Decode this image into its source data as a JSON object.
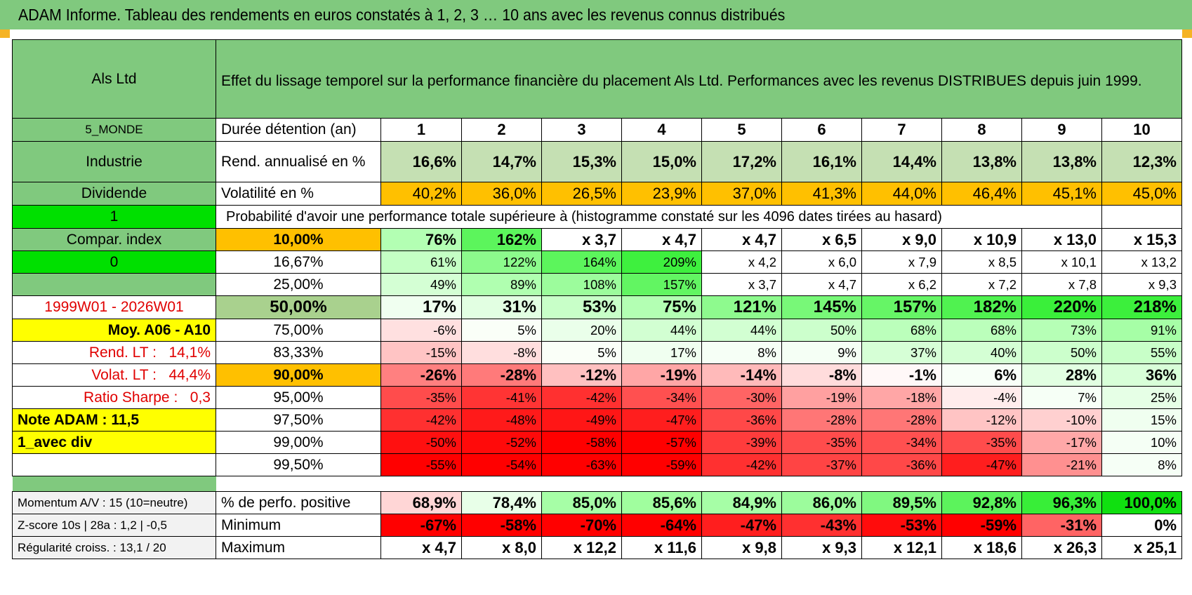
{
  "title": "ADAM Informe. Tableau des rendements en euros constatés à 1, 2, 3 … 10 ans avec les revenus connus distribués",
  "left": {
    "fund_name": "Als Ltd",
    "zone": "5_MONDE",
    "sector": "Industrie",
    "type": "Dividende",
    "flag1": "1",
    "compar_index": "Compar. index",
    "flag2": "0",
    "period": "1999W01 - 2026W01",
    "moy": "Moy. A06 - A10",
    "rend_lt_label": "Rend. LT :",
    "rend_lt_value": "14,1%",
    "volat_lt_label": "Volat. LT :",
    "volat_lt_value": "44,4%",
    "sharpe_label": "Ratio Sharpe :",
    "sharpe_value": "0,3",
    "note_adam": "Note ADAM : 11,5",
    "avec_div": "1_avec div"
  },
  "header_text": "Effet du lissage temporel sur la performance financière du placement Als Ltd. Performances avec les revenus DISTRIBUES depuis juin 1999.",
  "duration_label": "Durée détention (an)",
  "years": [
    "1",
    "2",
    "3",
    "4",
    "5",
    "6",
    "7",
    "8",
    "9",
    "10"
  ],
  "rend_label": "Rend. annualisé en %",
  "rend_values": [
    "16,6%",
    "14,7%",
    "15,3%",
    "15,0%",
    "17,2%",
    "16,1%",
    "14,4%",
    "13,8%",
    "13,8%",
    "12,3%"
  ],
  "vol_label": "Volatilité en %",
  "vol_values": [
    "40,2%",
    "36,0%",
    "26,5%",
    "23,9%",
    "37,0%",
    "41,3%",
    "44,0%",
    "46,4%",
    "45,1%",
    "45,0%"
  ],
  "prob_label": "Probabilité d'avoir une performance totale supérieure à (histogramme constaté sur les 4096 dates tirées au hasard)",
  "prob_rows": [
    {
      "p": "10,00%",
      "v": [
        "76%",
        "162%",
        "x 3,7",
        "x 4,7",
        "x 4,7",
        "x 6,5",
        "x 9,0",
        "x 10,9",
        "x 13,0",
        "x 15,3"
      ],
      "bg": [
        "#b3ffb3",
        "#5cf55c",
        "#ffffff",
        "#ffffff",
        "#ffffff",
        "#ffffff",
        "#ffffff",
        "#ffffff",
        "#ffffff",
        "#ffffff"
      ]
    },
    {
      "p": "16,67%",
      "v": [
        "61%",
        "122%",
        "164%",
        "209%",
        "x 4,2",
        "x 6,0",
        "x 7,9",
        "x 8,5",
        "x 10,1",
        "x 13,2"
      ],
      "bg": [
        "#c4ffc4",
        "#8cfa8c",
        "#5cf55c",
        "#3ef03e",
        "#ffffff",
        "#ffffff",
        "#ffffff",
        "#ffffff",
        "#ffffff",
        "#ffffff"
      ]
    },
    {
      "p": "25,00%",
      "v": [
        "49%",
        "89%",
        "108%",
        "157%",
        "x 3,7",
        "x 4,7",
        "x 6,2",
        "x 7,2",
        "x 7,8",
        "x 9,3"
      ],
      "bg": [
        "#d4ffd4",
        "#b0ffb0",
        "#9cfc9c",
        "#62f562",
        "#ffffff",
        "#ffffff",
        "#ffffff",
        "#ffffff",
        "#ffffff",
        "#ffffff"
      ]
    },
    {
      "p": "50,00%",
      "v": [
        "17%",
        "31%",
        "53%",
        "75%",
        "121%",
        "145%",
        "157%",
        "182%",
        "220%",
        "218%"
      ],
      "bg": [
        "#f0fff0",
        "#e2ffe2",
        "#c8ffc8",
        "#b3ffb3",
        "#8efa8e",
        "#78f878",
        "#66f566",
        "#50f250",
        "#3aef3a",
        "#3cef3c"
      ]
    },
    {
      "p": "75,00%",
      "v": [
        "-6%",
        "5%",
        "20%",
        "44%",
        "44%",
        "50%",
        "68%",
        "68%",
        "73%",
        "91%"
      ],
      "bg": [
        "#ffe0e0",
        "#fafff8",
        "#eaffea",
        "#d2ffd2",
        "#d2ffd2",
        "#ccffcc",
        "#bbffbb",
        "#bbffbb",
        "#b6ffb6",
        "#a6fea6"
      ]
    },
    {
      "p": "83,33%",
      "v": [
        "-15%",
        "-8%",
        "5%",
        "17%",
        "8%",
        "9%",
        "37%",
        "40%",
        "50%",
        "55%"
      ],
      "bg": [
        "#ffc4c4",
        "#ffdede",
        "#fafff8",
        "#f0fff0",
        "#f6fff6",
        "#f5fff5",
        "#d6ffd6",
        "#d4ffd4",
        "#ccffcc",
        "#c8ffc8"
      ]
    },
    {
      "p": "90,00%",
      "v": [
        "-26%",
        "-28%",
        "-12%",
        "-19%",
        "-14%",
        "-8%",
        "-1%",
        "6%",
        "28%",
        "36%"
      ],
      "bg": [
        "#ff8080",
        "#ff7a7a",
        "#ffc0c0",
        "#ffa6a6",
        "#ffbaba",
        "#ffdcdc",
        "#fff8f8",
        "#f8fff8",
        "#e2ffe2",
        "#d8ffd8"
      ]
    },
    {
      "p": "95,00%",
      "v": [
        "-35%",
        "-41%",
        "-42%",
        "-34%",
        "-30%",
        "-19%",
        "-18%",
        "-4%",
        "7%",
        "25%"
      ],
      "bg": [
        "#ff4c4c",
        "#ff3434",
        "#ff3030",
        "#ff5050",
        "#ff6464",
        "#ffa0a0",
        "#ffa6a6",
        "#ffecec",
        "#f6fff6",
        "#e6ffe6"
      ]
    },
    {
      "p": "97,50%",
      "v": [
        "-42%",
        "-48%",
        "-49%",
        "-47%",
        "-36%",
        "-28%",
        "-28%",
        "-12%",
        "-10%",
        "15%"
      ],
      "bg": [
        "#ff3030",
        "#ff1a1a",
        "#ff1616",
        "#ff1e1e",
        "#ff4848",
        "#ff7676",
        "#ff7676",
        "#ffc4c4",
        "#ffd0d0",
        "#f0fff0"
      ]
    },
    {
      "p": "99,00%",
      "v": [
        "-50%",
        "-52%",
        "-58%",
        "-57%",
        "-39%",
        "-35%",
        "-34%",
        "-35%",
        "-17%",
        "10%"
      ],
      "bg": [
        "#ff1010",
        "#ff0a0a",
        "#ff0000",
        "#ff0000",
        "#ff3c3c",
        "#ff4c4c",
        "#ff5050",
        "#ff4c4c",
        "#ffa8a8",
        "#f5fff5"
      ]
    },
    {
      "p": "99,50%",
      "v": [
        "-55%",
        "-54%",
        "-63%",
        "-59%",
        "-42%",
        "-37%",
        "-36%",
        "-47%",
        "-21%",
        "8%"
      ],
      "bg": [
        "#ff0000",
        "#ff0000",
        "#ff0000",
        "#ff0000",
        "#ff3030",
        "#ff4444",
        "#ff4848",
        "#ff1e1e",
        "#ff9090",
        "#f6fff6"
      ]
    }
  ],
  "bottom": {
    "momentum": "Momentum A/V : 15 (10=neutre)",
    "zscore": "Z-score 10s | 28a : 1,2 | -0,5",
    "regularite": "Régularité croiss. : 13,1 / 20",
    "pos_label": "% de perfo. positive",
    "pos_values": [
      "68,9%",
      "78,4%",
      "85,0%",
      "85,6%",
      "84,9%",
      "86,0%",
      "89,5%",
      "92,8%",
      "96,3%",
      "100,0%"
    ],
    "pos_bg": [
      "#ffd6d6",
      "#e8ffe8",
      "#a6fea6",
      "#a0fe9e",
      "#a6fea6",
      "#9cfc9c",
      "#80f880",
      "#5cf35c",
      "#38ee38",
      "#10e010"
    ],
    "min_label": "Minimum",
    "min_values": [
      "-67%",
      "-58%",
      "-70%",
      "-64%",
      "-47%",
      "-43%",
      "-53%",
      "-59%",
      "-31%",
      "0%"
    ],
    "min_bg": [
      "#ff0000",
      "#ff0000",
      "#ff0000",
      "#ff0000",
      "#ff1e1e",
      "#ff3030",
      "#ff0c0c",
      "#ff0000",
      "#ff6464",
      "#ffffff"
    ],
    "max_label": "Maximum",
    "max_values": [
      "x 4,7",
      "x 8,0",
      "x 12,2",
      "x 11,6",
      "x 9,8",
      "x 9,3",
      "x 12,1",
      "x 18,6",
      "x 26,3",
      "x 25,1"
    ]
  },
  "colors": {
    "header_green": "#80c97e",
    "light_green": "#c5e0b3",
    "orange": "#ffc000",
    "yellow": "#ffff00",
    "bright_green": "#00e000"
  }
}
